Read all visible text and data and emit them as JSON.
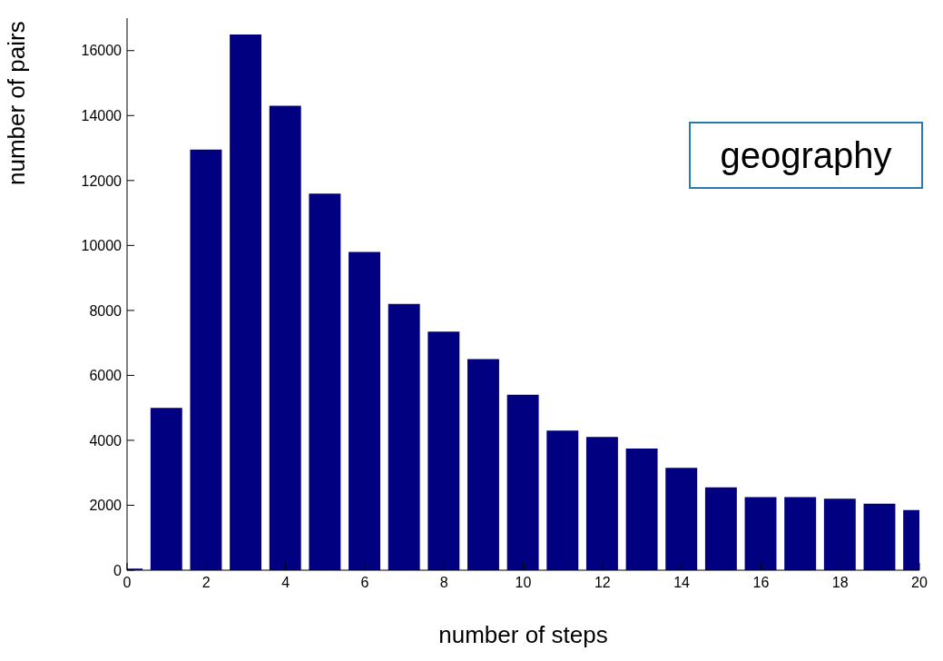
{
  "chart_data": {
    "type": "bar",
    "xlabel": "number of steps",
    "ylabel": "number of pairs",
    "annotations": [
      "geography"
    ],
    "x": [
      0,
      1,
      2,
      3,
      4,
      5,
      6,
      7,
      8,
      9,
      10,
      11,
      12,
      13,
      14,
      15,
      16,
      17,
      18,
      19,
      20
    ],
    "values": [
      50,
      5000,
      12950,
      16500,
      14300,
      11600,
      9800,
      8200,
      7350,
      6500,
      5400,
      4300,
      4100,
      3750,
      3150,
      2550,
      2250,
      2250,
      2200,
      2050,
      1850
    ],
    "color": "#000080",
    "xlim": [
      0,
      20
    ],
    "xticks": [
      0,
      2,
      4,
      6,
      8,
      10,
      12,
      14,
      16,
      18,
      20
    ],
    "ylim": [
      0,
      17000
    ],
    "yticks": [
      0,
      2000,
      4000,
      6000,
      8000,
      10000,
      12000,
      14000,
      16000
    ],
    "grid": false,
    "legend": false
  }
}
